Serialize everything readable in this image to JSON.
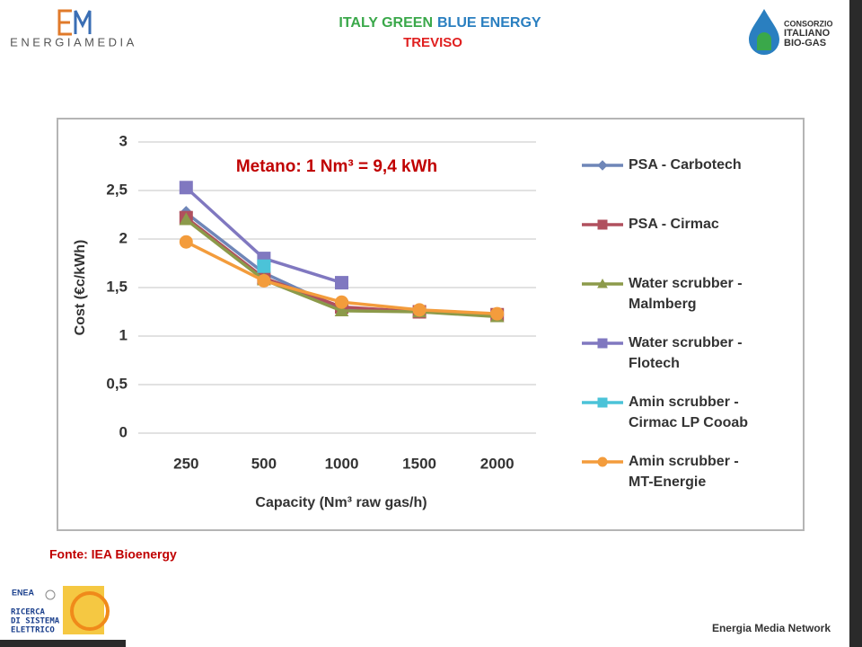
{
  "header": {
    "logo_left": "ENERGIAMEDIA",
    "title_green": "ITALY GREEN",
    "title_blue": "BLUE ENERGY",
    "subtitle": "TREVISO",
    "logo_right": [
      "CONSORZIO",
      "ITALIANO",
      "BIO-GAS"
    ]
  },
  "chart_data": {
    "type": "line",
    "annotation": "Metano: 1 Nm³ = 9,4 kWh",
    "x_label": "Capacity (Nm³ raw gas/h)",
    "y_label": "Cost (€c/kWh)",
    "categories": [
      "250",
      "500",
      "1000",
      "1500",
      "2000"
    ],
    "ylim": [
      0,
      3
    ],
    "yticks": [
      0,
      {
        "value": 0.5,
        "label": "0,5"
      },
      1,
      {
        "value": 1.5,
        "label": "1,5"
      },
      2,
      {
        "value": 2.5,
        "label": "2,5"
      },
      3
    ],
    "grid": true,
    "legend": "right",
    "series": [
      {
        "name": "PSA - Carbotech",
        "color": "#6f86b8",
        "marker": "diamond",
        "values": [
          2.27,
          1.65,
          1.28,
          1.25,
          1.22
        ]
      },
      {
        "name": "PSA - Cirmac",
        "color": "#b0505e",
        "marker": "square",
        "values": [
          2.22,
          1.6,
          1.3,
          1.25,
          1.22
        ]
      },
      {
        "name": "Water scrubber - Malmberg",
        "color": "#8c9a4a",
        "marker": "triangle",
        "values": [
          2.2,
          1.58,
          1.26,
          1.25,
          1.2
        ]
      },
      {
        "name": "Water scrubber - Flotech",
        "color": "#8078c0",
        "marker": "square",
        "values": [
          2.53,
          1.8,
          1.55,
          null,
          null
        ]
      },
      {
        "name": "Amin scrubber - Cirmac LP Cooab",
        "color": "#4bc3d8",
        "marker": "square",
        "values": [
          null,
          1.72,
          null,
          null,
          null
        ]
      },
      {
        "name": "Amin scrubber - MT-Energie",
        "color": "#f39c3c",
        "marker": "circle",
        "values": [
          1.97,
          1.57,
          1.35,
          1.27,
          1.23
        ]
      }
    ]
  },
  "source": "Fonte: IEA Bioenergy",
  "footer": {
    "enea": "ENEA",
    "ricerca": [
      "RICERCA",
      "DI SISTEMA",
      "ELETTRICO"
    ],
    "network": "Energia Media Network"
  }
}
